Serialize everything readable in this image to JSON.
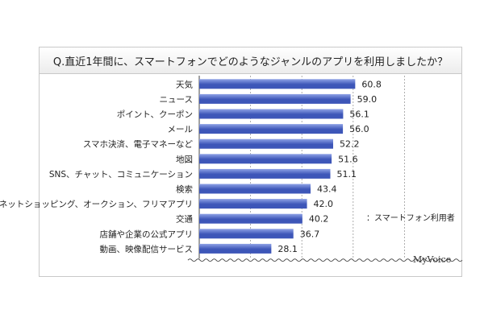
{
  "chart_data": {
    "type": "bar",
    "orientation": "horizontal",
    "title": "Q.直近1年間に、スマートフォンでどのようなジャンルのアプリを利用しましたか？",
    "categories": [
      "天気",
      "ニュース",
      "ポイント、クーポン",
      "メール",
      "スマホ決済、電子マネーなど",
      "地図",
      "SNS、チャット、コミュニケーション",
      "検索",
      "ネットショッピング、オークション、フリマアプリ",
      "交通",
      "店舗や企業の公式アプリ",
      "動画、映像配信サービス"
    ],
    "values": [
      60.8,
      59.0,
      56.1,
      56.0,
      52.2,
      51.6,
      51.1,
      43.4,
      42.0,
      40.2,
      36.7,
      28.1
    ],
    "value_labels": [
      "60.8",
      "59.0",
      "56.1",
      "56.0",
      "52.2",
      "51.6",
      "51.1",
      "43.4",
      "42.0",
      "40.2",
      "36.7",
      "28.1"
    ],
    "xlim": [
      0,
      100
    ],
    "grid": true,
    "bar_color": "#3d56b8",
    "bar_color_light": "#8fa2e6",
    "note": "：スマートフォン利用者",
    "logo": "MyVoice"
  }
}
